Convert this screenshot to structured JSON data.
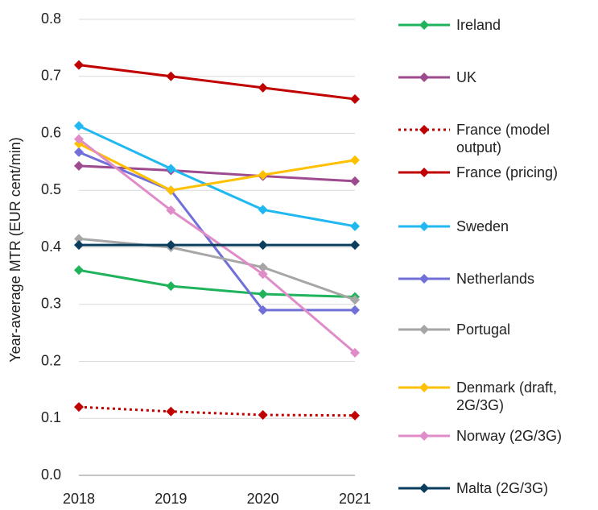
{
  "chart_data": {
    "type": "line",
    "y_label": "Year-average MTR (EUR cent/min)",
    "categories": [
      "2018",
      "2019",
      "2020",
      "2021"
    ],
    "ylim": [
      0,
      0.8
    ],
    "yticks": [
      {
        "value": 0,
        "label": "0.0"
      },
      0.1,
      0.2,
      0.3,
      0.4,
      0.5,
      0.6,
      0.7,
      0.8
    ],
    "grid": true,
    "legend": "right",
    "series": [
      {
        "name": "Ireland",
        "color": "#1fb35b",
        "values": [
          0.36,
          0.332,
          0.318,
          0.313
        ]
      },
      {
        "name": "UK",
        "color": "#9e4a8f",
        "values": [
          0.543,
          0.535,
          0.525,
          0.516
        ]
      },
      {
        "name": "France (model output)",
        "color": "#c00000",
        "style": "dotted",
        "values": [
          0.12,
          0.112,
          0.106,
          0.105
        ]
      },
      {
        "name": "France (pricing)",
        "color": "#c00000",
        "values": [
          0.72,
          0.7,
          0.68,
          0.66
        ]
      },
      {
        "name": "Sweden",
        "color": "#20b8f0",
        "values": [
          0.613,
          0.538,
          0.466,
          0.437
        ]
      },
      {
        "name": "Netherlands",
        "color": "#7070d8",
        "values": [
          0.567,
          0.5,
          0.29,
          0.29
        ]
      },
      {
        "name": "Portugal",
        "color": "#a6a6a6",
        "values": [
          0.415,
          0.4,
          0.365,
          0.308
        ]
      },
      {
        "name": "Denmark (draft, 2G/3G)",
        "color": "#ffc000",
        "values": [
          0.582,
          0.5,
          0.527,
          0.553
        ]
      },
      {
        "name": "Norway (2G/3G)",
        "color": "#e08cc8",
        "values": [
          0.59,
          0.465,
          0.353,
          0.215
        ]
      },
      {
        "name": "Malta (2G/3G)",
        "color": "#0b3d5e",
        "values": [
          0.404,
          0.404,
          0.404,
          0.404
        ]
      }
    ]
  }
}
